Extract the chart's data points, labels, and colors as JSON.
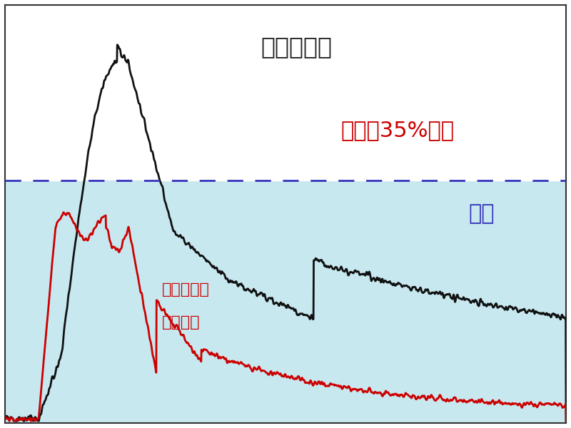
{
  "background_color": "#ffffff",
  "fill_color": "#c8e8f0",
  "dashed_line_color": "#3333bb",
  "dashed_line_y": 0.58,
  "black_curve_color": "#111111",
  "red_curve_color": "#cc0000",
  "label_toray": "東レ現行材",
  "label_toray_color": "#222222",
  "label_reduction": "発熱量35%低減",
  "label_reduction_color": "#cc0000",
  "label_target": "目標",
  "label_target_color": "#3333bb",
  "label_flame": "難燃モデル",
  "label_cfrp": "ＣＦＲＰ",
  "label_flame_color": "#cc0000",
  "xlim": [
    0,
    1
  ],
  "ylim": [
    0,
    1
  ],
  "figsize": [
    8,
    6
  ],
  "dpi": 100
}
